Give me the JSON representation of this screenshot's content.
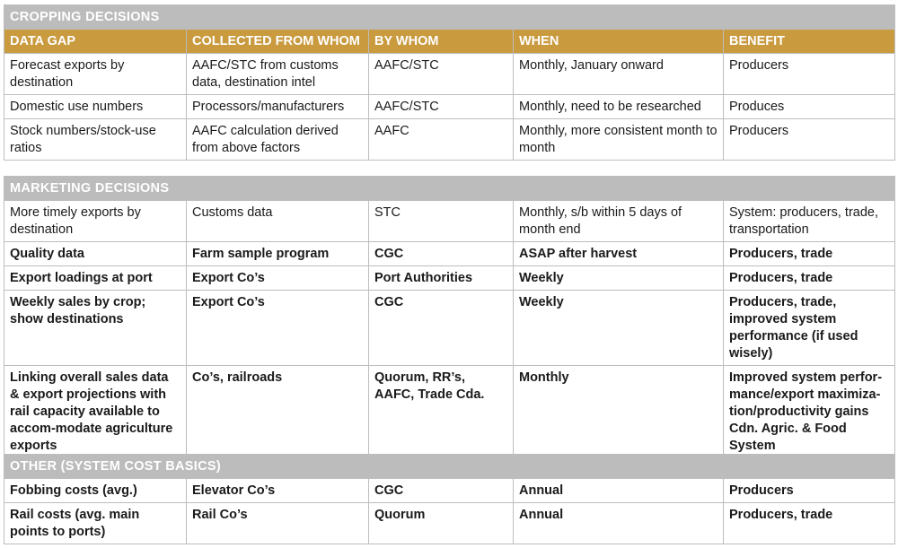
{
  "sections": [
    {
      "title": "CROPPING DECISIONS",
      "headers": [
        "DATA GAP",
        "COLLECTED FROM WHOM",
        "BY WHOM",
        "WHEN",
        "BENEFIT"
      ],
      "rows": [
        {
          "bold": false,
          "cells": [
            "Forecast exports by destination",
            "AAFC/STC from customs data, destination intel",
            "AAFC/STC",
            "Monthly, January onward",
            "Producers"
          ]
        },
        {
          "bold": false,
          "cells": [
            "Domestic use numbers",
            "Processors/manufacturers",
            "AAFC/STC",
            "Monthly, need to be researched",
            "Produces"
          ]
        },
        {
          "bold": false,
          "cells": [
            "Stock numbers/stock-use ratios",
            "AAFC calculation derived from above factors",
            "AAFC",
            "Monthly, more consistent month to month",
            "Producers"
          ]
        }
      ]
    },
    {
      "title": "MARKETING DECISIONS",
      "rows": [
        {
          "bold": false,
          "cells": [
            "More timely exports by destination",
            "Customs data",
            "STC",
            "Monthly, s/b within 5 days of month end",
            "System: producers, trade, transportation"
          ]
        },
        {
          "bold": true,
          "cells": [
            "Quality data",
            "Farm sample program",
            "CGC",
            "ASAP after harvest",
            "Producers, trade"
          ]
        },
        {
          "bold": true,
          "cells": [
            "Export loadings at port",
            "Export Co’s",
            "Port Authorities",
            "Weekly",
            "Producers, trade"
          ]
        },
        {
          "bold": true,
          "cells": [
            "Weekly sales by crop; show destinations",
            "Export Co’s",
            "CGC",
            "Weekly",
            "Producers, trade, improved system performance (if used wisely)"
          ]
        },
        {
          "bold": true,
          "cells": [
            "Linking overall sales data & export projections with rail capacity available to accom-modate agriculture exports",
            "Co’s, railroads",
            "Quorum, RR’s, AAFC, Trade Cda.",
            "Monthly",
            "Improved system perfor-mance/export maximiza-tion/productivity gains Cdn. Agric. & Food System"
          ]
        }
      ]
    },
    {
      "title": "OTHER (SYSTEM COST BASICS)",
      "rows": [
        {
          "bold": true,
          "cells": [
            "Fobbing costs (avg.)",
            "Elevator Co’s",
            "CGC",
            "Annual",
            "Producers"
          ]
        },
        {
          "bold": true,
          "cells": [
            "Rail costs (avg. main points to ports)",
            "Rail Co’s",
            "Quorum",
            "Annual",
            "Producers, trade"
          ]
        }
      ]
    }
  ],
  "colors": {
    "header_gold": "#c99a3e",
    "section_gray": "#bcbcbc",
    "border": "#bdbdbd"
  }
}
